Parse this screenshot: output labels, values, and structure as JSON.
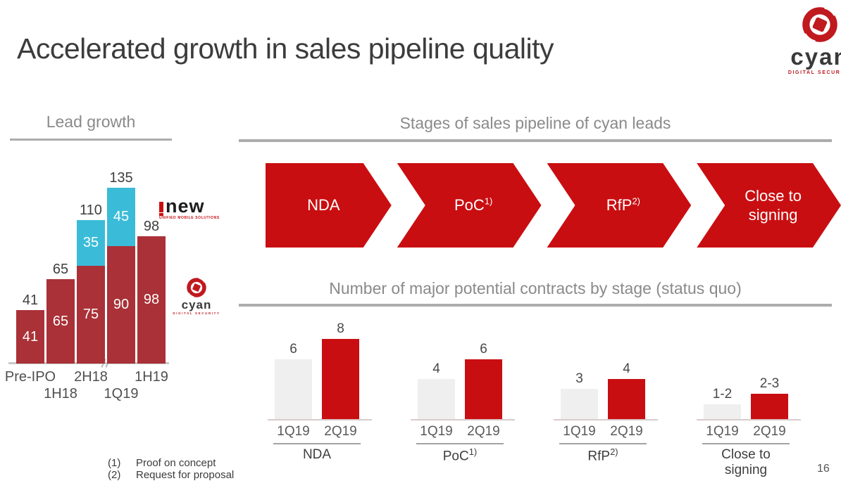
{
  "title": "Accelerated growth in sales pipeline quality",
  "page_number": "16",
  "branding": {
    "cyan_logo_text": "cyan",
    "cyan_logo_tagline": "DIGITAL SECURITY",
    "inew_logo_text": "new",
    "inew_logo_tagline": "UNIFIED MOBILE SOLUTIONS"
  },
  "sections": {
    "lead_growth_heading": "Lead growth",
    "pipeline_heading": "Stages of sales pipeline of cyan leads",
    "contracts_heading": "Number of major potential contracts by stage (status quo)"
  },
  "pipeline_stages": [
    {
      "label": "NDA",
      "sup": ""
    },
    {
      "label": "PoC",
      "sup": "1)"
    },
    {
      "label": "RfP",
      "sup": "2)"
    },
    {
      "label": "Close to signing",
      "sup": ""
    }
  ],
  "footnotes": [
    {
      "marker": "(1)",
      "text": "Proof on concept"
    },
    {
      "marker": "(2)",
      "text": "Request for proposal"
    }
  ],
  "colors": {
    "bright_red": "#C90E11",
    "dark_red": "#A93137",
    "cyan_blue": "#3ABCD8",
    "light_gray_bar": "#EFEFEF",
    "heading_gray": "#8A8A8A",
    "logo_red": "#C0191E"
  },
  "chart_data": [
    {
      "type": "bar",
      "title": "Lead growth",
      "stacked": true,
      "categories": [
        "Pre-IPO",
        "1H18",
        "2H18",
        "1Q19",
        "1H19"
      ],
      "series": [
        {
          "name": "cyan leads",
          "color": "#A93137",
          "values": [
            41,
            65,
            75,
            90,
            98
          ]
        },
        {
          "name": "i-new leads",
          "color": "#3ABCD8",
          "values": [
            0,
            0,
            35,
            45,
            0
          ]
        }
      ],
      "totals": [
        41,
        65,
        110,
        135,
        98
      ],
      "ylim": [
        0,
        150
      ],
      "axis_break_between": [
        "2H18",
        "1Q19"
      ],
      "legend_position": "none",
      "grid": false
    },
    {
      "type": "bar",
      "title": "Number of major potential contracts by stage (status quo)",
      "categories": [
        "1Q19",
        "2Q19"
      ],
      "bar_colors": [
        "#EFEFEF",
        "#C90E11"
      ],
      "groups": [
        {
          "label": "NDA",
          "sup": "",
          "values": [
            6,
            8
          ],
          "display": [
            "6",
            "8"
          ]
        },
        {
          "label": "PoC",
          "sup": "1)",
          "values": [
            4,
            6
          ],
          "display": [
            "4",
            "6"
          ]
        },
        {
          "label": "RfP",
          "sup": "2)",
          "values": [
            3,
            4
          ],
          "display": [
            "3",
            "4"
          ]
        },
        {
          "label": "Close to signing",
          "sup": "",
          "values": [
            1.5,
            2.5
          ],
          "display": [
            "1-2",
            "2-3"
          ]
        }
      ],
      "ylim": [
        0,
        9
      ],
      "grid": false
    }
  ]
}
